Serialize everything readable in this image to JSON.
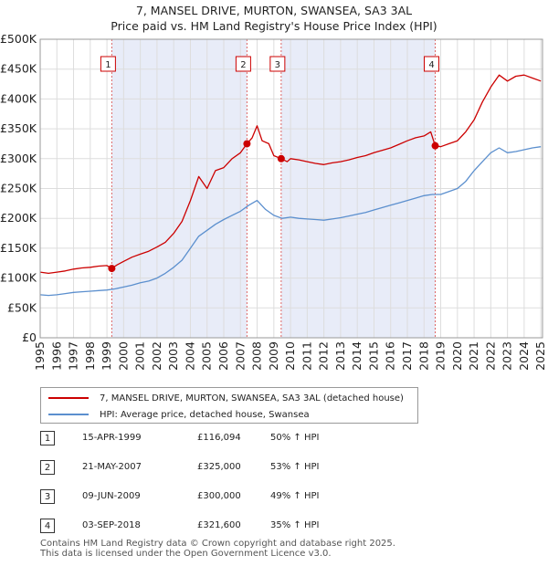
{
  "chart_data": {
    "type": "line",
    "title": [
      "7, MANSEL DRIVE, MURTON, SWANSEA, SA3 3AL",
      "Price paid vs. HM Land Registry's House Price Index (HPI)"
    ],
    "xlabel": "",
    "ylabel": "",
    "xlim": [
      1995,
      2025.1
    ],
    "ylim": [
      0,
      500000
    ],
    "grid": true,
    "legend_position": "below",
    "x_ticks": [
      1995,
      1996,
      1997,
      1998,
      1999,
      2000,
      2001,
      2002,
      2003,
      2004,
      2005,
      2006,
      2007,
      2008,
      2009,
      2010,
      2011,
      2012,
      2013,
      2014,
      2015,
      2016,
      2017,
      2018,
      2019,
      2020,
      2021,
      2022,
      2023,
      2024,
      2025
    ],
    "x_tick_labels": [
      "1995",
      "1996",
      "1997",
      "1998",
      "1999",
      "2000",
      "2001",
      "2002",
      "2003",
      "2004",
      "2005",
      "2006",
      "2007",
      "2008",
      "2009",
      "2010",
      "2011",
      "2012",
      "2013",
      "2014",
      "2015",
      "2016",
      "2017",
      "2018",
      "2019",
      "2020",
      "2021",
      "2022",
      "2023",
      "2024",
      "2025"
    ],
    "y_ticks": [
      0,
      50000,
      100000,
      150000,
      200000,
      250000,
      300000,
      350000,
      400000,
      450000,
      500000
    ],
    "y_tick_labels": [
      "£0",
      "£50K",
      "£100K",
      "£150K",
      "£200K",
      "£250K",
      "£300K",
      "£350K",
      "£400K",
      "£450K",
      "£500K"
    ],
    "shaded_spans": [
      [
        1999.29,
        2007.39
      ],
      [
        2009.44,
        2018.67
      ]
    ],
    "series": [
      {
        "name": "7, MANSEL DRIVE, MURTON, SWANSEA, SA3 3AL (detached house)",
        "color": "#cc0000",
        "x": [
          1995.0,
          1995.5,
          1996.0,
          1996.5,
          1997.0,
          1997.5,
          1998.0,
          1998.5,
          1999.0,
          1999.29,
          1999.6,
          2000.0,
          2000.5,
          2001.0,
          2001.5,
          2002.0,
          2002.5,
          2003.0,
          2003.5,
          2004.0,
          2004.5,
          2005.0,
          2005.5,
          2006.0,
          2006.5,
          2007.0,
          2007.39,
          2007.7,
          2008.0,
          2008.3,
          2008.7,
          2009.0,
          2009.44,
          2009.8,
          2010.0,
          2010.5,
          2011.0,
          2011.5,
          2012.0,
          2012.5,
          2013.0,
          2013.5,
          2014.0,
          2014.5,
          2015.0,
          2015.5,
          2016.0,
          2016.5,
          2017.0,
          2017.5,
          2018.0,
          2018.4,
          2018.67,
          2019.0,
          2019.5,
          2020.0,
          2020.5,
          2021.0,
          2021.5,
          2022.0,
          2022.5,
          2023.0,
          2023.5,
          2024.0,
          2024.5,
          2025.0
        ],
        "values": [
          110000,
          108000,
          110000,
          112000,
          115000,
          117000,
          118000,
          120000,
          121000,
          116094,
          122000,
          128000,
          135000,
          140000,
          145000,
          152000,
          160000,
          175000,
          195000,
          230000,
          270000,
          250000,
          280000,
          285000,
          300000,
          310000,
          325000,
          335000,
          355000,
          330000,
          325000,
          305000,
          300000,
          295000,
          300000,
          298000,
          295000,
          292000,
          290000,
          293000,
          295000,
          298000,
          302000,
          305000,
          310000,
          314000,
          318000,
          324000,
          330000,
          335000,
          338000,
          345000,
          321600,
          320000,
          325000,
          330000,
          345000,
          365000,
          395000,
          420000,
          440000,
          430000,
          438000,
          440000,
          435000,
          430000
        ]
      },
      {
        "name": "HPI: Average price, detached house, Swansea",
        "color": "#5b8fce",
        "x": [
          1995.0,
          1995.5,
          1996.0,
          1996.5,
          1997.0,
          1997.5,
          1998.0,
          1998.5,
          1999.0,
          1999.5,
          2000.0,
          2000.5,
          2001.0,
          2001.5,
          2002.0,
          2002.5,
          2003.0,
          2003.5,
          2004.0,
          2004.5,
          2005.0,
          2005.5,
          2006.0,
          2006.5,
          2007.0,
          2007.5,
          2008.0,
          2008.5,
          2009.0,
          2009.5,
          2010.0,
          2010.5,
          2011.0,
          2011.5,
          2012.0,
          2012.5,
          2013.0,
          2013.5,
          2014.0,
          2014.5,
          2015.0,
          2015.5,
          2016.0,
          2016.5,
          2017.0,
          2017.5,
          2018.0,
          2018.5,
          2019.0,
          2019.5,
          2020.0,
          2020.5,
          2021.0,
          2021.5,
          2022.0,
          2022.5,
          2023.0,
          2023.5,
          2024.0,
          2024.5,
          2025.0
        ],
        "values": [
          72000,
          71000,
          72000,
          74000,
          76000,
          77000,
          78000,
          79000,
          80000,
          82000,
          85000,
          88000,
          92000,
          95000,
          100000,
          108000,
          118000,
          130000,
          150000,
          170000,
          180000,
          190000,
          198000,
          205000,
          212000,
          222000,
          230000,
          215000,
          205000,
          200000,
          202000,
          200000,
          199000,
          198000,
          197000,
          199000,
          201000,
          204000,
          207000,
          210000,
          214000,
          218000,
          222000,
          226000,
          230000,
          234000,
          238000,
          240000,
          240000,
          245000,
          250000,
          262000,
          280000,
          295000,
          310000,
          318000,
          310000,
          312000,
          315000,
          318000,
          320000
        ]
      }
    ],
    "sale_markers": [
      {
        "label": "1",
        "x": 1999.29,
        "value": 116094
      },
      {
        "label": "2",
        "x": 2007.39,
        "value": 325000
      },
      {
        "label": "3",
        "x": 2009.44,
        "value": 300000
      },
      {
        "label": "4",
        "x": 2018.67,
        "value": 321600
      }
    ]
  },
  "legend": {
    "property_label": "7, MANSEL DRIVE, MURTON, SWANSEA, SA3 3AL (detached house)",
    "hpi_label": "HPI: Average price, detached house, Swansea"
  },
  "sales": [
    {
      "num": "1",
      "date": "15-APR-1999",
      "price": "£116,094",
      "hpi": "50% ↑ HPI"
    },
    {
      "num": "2",
      "date": "21-MAY-2007",
      "price": "£325,000",
      "hpi": "53% ↑ HPI"
    },
    {
      "num": "3",
      "date": "09-JUN-2009",
      "price": "£300,000",
      "hpi": "49% ↑ HPI"
    },
    {
      "num": "4",
      "date": "03-SEP-2018",
      "price": "£321,600",
      "hpi": "35% ↑ HPI"
    }
  ],
  "footer": {
    "line1": "Contains HM Land Registry data © Crown copyright and database right 2025.",
    "line2": "This data is licensed under the Open Government Licence v3.0."
  },
  "colors": {
    "property": "#cc0000",
    "hpi": "#5b8fce",
    "shade": "#e8ecf8",
    "grid": "#dddddd",
    "marker_line": "#dd6666"
  }
}
